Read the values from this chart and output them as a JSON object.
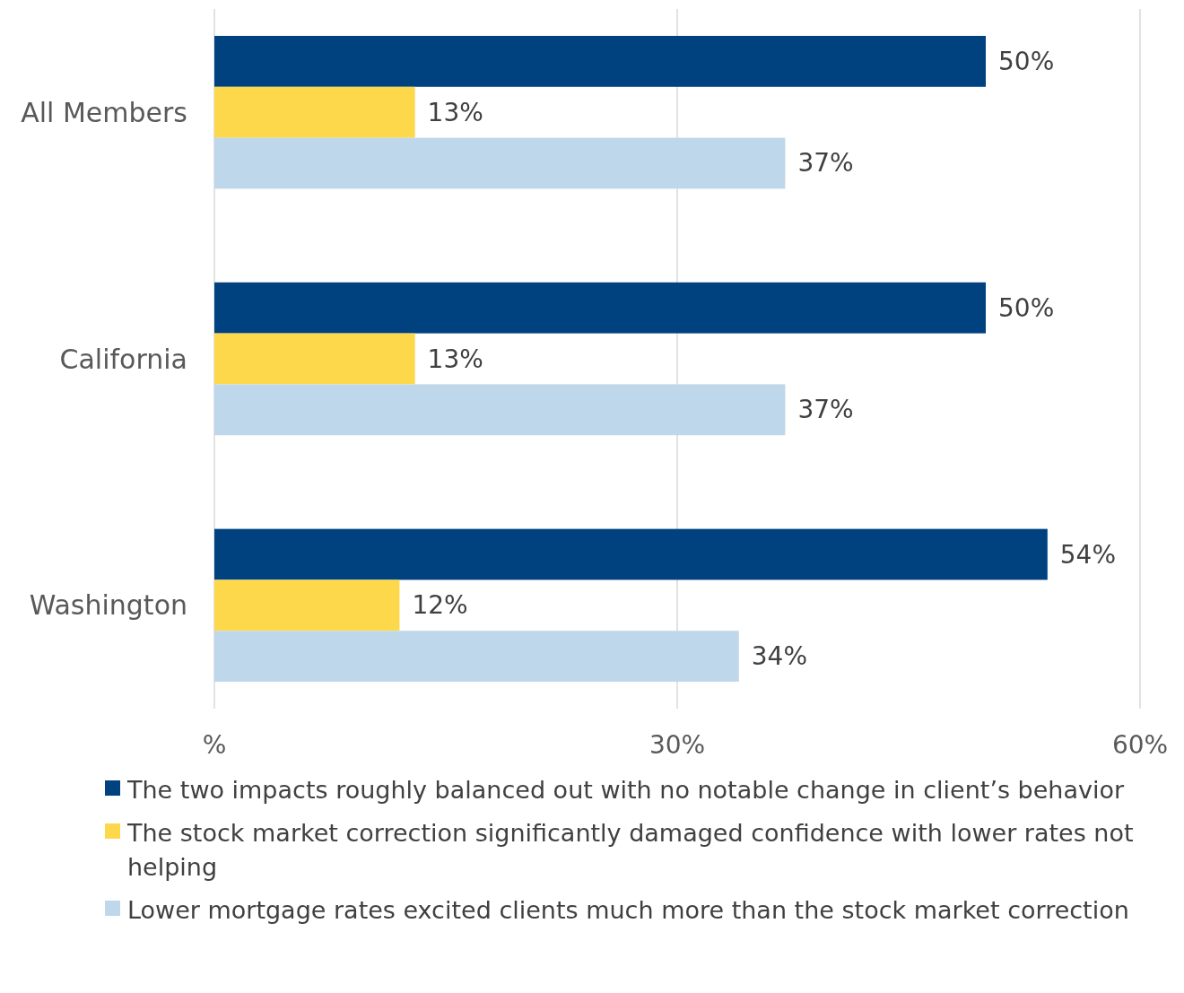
{
  "chart_data": {
    "type": "bar",
    "orientation": "horizontal",
    "categories": [
      "All Members",
      "California",
      "Washington"
    ],
    "series": [
      {
        "name": "The two impacts roughly balanced out with no notable change in client’s behavior",
        "color": "#00427f",
        "values": [
          50,
          50,
          54
        ],
        "value_labels": [
          "50%",
          "50%",
          "54%"
        ]
      },
      {
        "name": "The stock market correction significantly damaged confidence with lower rates not helping",
        "color": "#fed84b",
        "values": [
          13,
          13,
          12
        ],
        "value_labels": [
          "13%",
          "13%",
          "12%"
        ]
      },
      {
        "name": "Lower mortgage rates excited clients much more than the stock market correction",
        "color": "#bfd7ea",
        "values": [
          37,
          37,
          34
        ],
        "value_labels": [
          "37%",
          "37%",
          "34%"
        ]
      }
    ],
    "xlim": [
      0,
      60
    ],
    "xticks": [
      {
        "value": 0,
        "label": "%"
      },
      {
        "value": 30,
        "label": "30%"
      },
      {
        "value": 60,
        "label": "60%"
      }
    ],
    "grid": "x",
    "legend": "bottom"
  }
}
